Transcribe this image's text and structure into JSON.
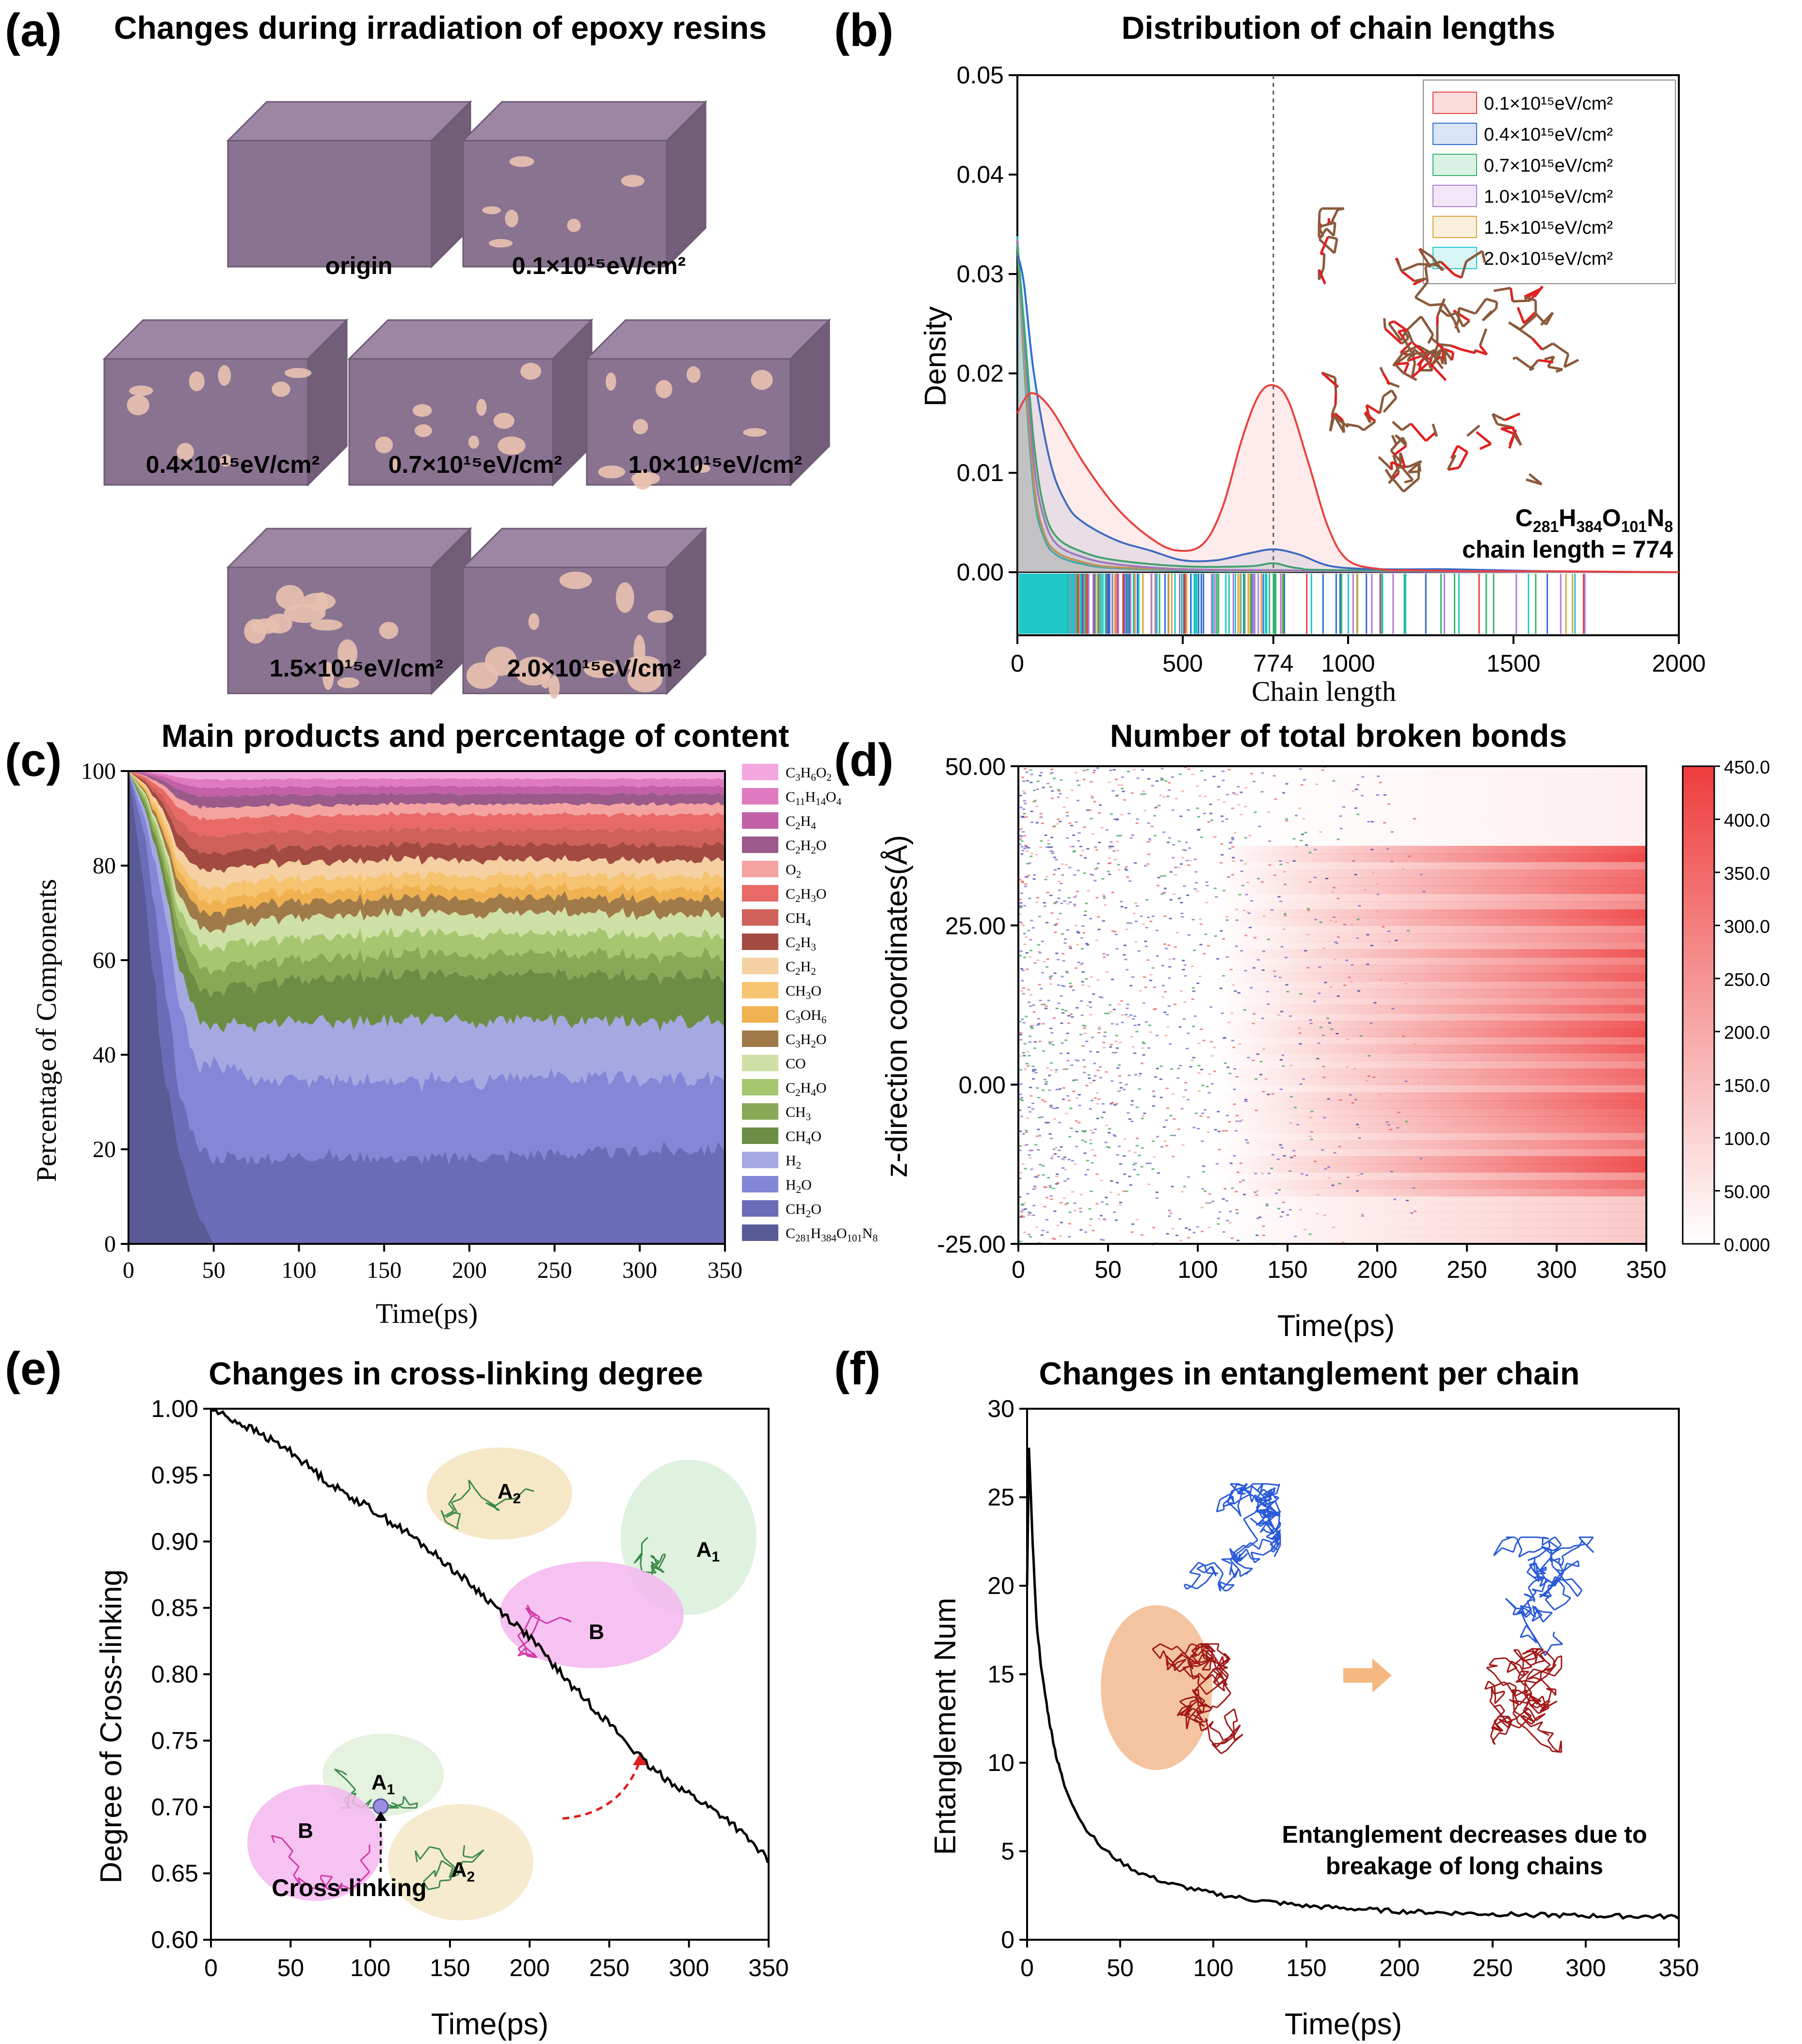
{
  "panels": {
    "a": {
      "label": "(a)",
      "title": "Changes during irradiation of epoxy resins",
      "cubes": [
        {
          "label": "origin",
          "pores": 0
        },
        {
          "label": "0.1×10¹⁵eV/cm²",
          "pores": 6
        },
        {
          "label": "0.4×10¹⁵eV/cm²",
          "pores": 8
        },
        {
          "label": "0.7×10¹⁵eV/cm²",
          "pores": 9
        },
        {
          "label": "1.0×10¹⁵eV/cm²",
          "pores": 10
        },
        {
          "label": "1.5×10¹⁵eV/cm²",
          "pores": 12
        },
        {
          "label": "2.0×10¹⁵eV/cm²",
          "pores": 13
        }
      ],
      "colors": {
        "cube": "#8a7391",
        "pore": "#e8c2b0"
      }
    },
    "b": {
      "label": "(b)"
    },
    "c": {
      "label": "(c)"
    },
    "d": {
      "label": "(d)"
    },
    "e": {
      "label": "(e)"
    },
    "f": {
      "label": "(f)"
    }
  },
  "chart_data": [
    {
      "id": "b",
      "type": "line",
      "title": "Distribution of chain lengths",
      "xlabel": "Chain length",
      "ylabel": "Density",
      "xlim": [
        0,
        2000
      ],
      "ylim": [
        0,
        0.05
      ],
      "xticks": [
        "0",
        "500",
        "774",
        "1000",
        "1500",
        "2000"
      ],
      "xtick_values": [
        0,
        500,
        774,
        1000,
        1500,
        2000
      ],
      "yticks": [
        "0.00",
        "0.01",
        "0.02",
        "0.03",
        "0.04",
        "0.05"
      ],
      "marker_line_x": 774,
      "legend": [
        {
          "label": "0.1×10¹⁵eV/cm²",
          "color": "#e8413f"
        },
        {
          "label": "0.4×10¹⁵eV/cm²",
          "color": "#2d6fd0"
        },
        {
          "label": "0.7×10¹⁵eV/cm²",
          "color": "#34b36d"
        },
        {
          "label": "1.0×10¹⁵eV/cm²",
          "color": "#b179d8"
        },
        {
          "label": "1.5×10¹⁵eV/cm²",
          "color": "#e0a43a"
        },
        {
          "label": "2.0×10¹⁵eV/cm²",
          "color": "#1fc7c7"
        }
      ],
      "series": [
        {
          "name": "0.1×10¹⁵eV/cm²",
          "color": "#e8413f",
          "x": [
            0,
            40,
            100,
            200,
            300,
            400,
            480,
            560,
            620,
            680,
            730,
            774,
            820,
            880,
            940,
            1000,
            1100,
            1200,
            1400,
            1600,
            2000
          ],
          "y": [
            0.016,
            0.018,
            0.0165,
            0.011,
            0.0065,
            0.0035,
            0.0022,
            0.0028,
            0.0065,
            0.0135,
            0.0178,
            0.0188,
            0.0172,
            0.011,
            0.0045,
            0.0012,
            0.0003,
            0.0002,
            0.0001,
            0.0001,
            0
          ]
        },
        {
          "name": "0.4×10¹⁵eV/cm²",
          "color": "#2d6fd0",
          "x": [
            0,
            20,
            50,
            100,
            150,
            200,
            300,
            400,
            500,
            600,
            700,
            774,
            850,
            950,
            1100,
            1300,
            1600,
            2000
          ],
          "y": [
            0.032,
            0.029,
            0.02,
            0.011,
            0.0068,
            0.005,
            0.0032,
            0.0022,
            0.0012,
            0.0012,
            0.0019,
            0.0023,
            0.0018,
            0.0006,
            0.0003,
            0.0003,
            0.0001,
            0
          ]
        },
        {
          "name": "0.7×10¹⁵eV/cm²",
          "color": "#34b36d",
          "x": [
            0,
            20,
            50,
            80,
            120,
            200,
            300,
            500,
            700,
            774,
            850,
            1000,
            2000
          ],
          "y": [
            0.033,
            0.025,
            0.013,
            0.0065,
            0.0035,
            0.002,
            0.0012,
            0.0006,
            0.0006,
            0.0009,
            0.0004,
            0.0002,
            0
          ]
        },
        {
          "name": "1.0×10¹⁵eV/cm²",
          "color": "#b179d8",
          "x": [
            0,
            20,
            50,
            80,
            120,
            200,
            300,
            500,
            800,
            1000,
            2000
          ],
          "y": [
            0.0335,
            0.024,
            0.011,
            0.0055,
            0.0028,
            0.0015,
            0.0008,
            0.0003,
            0.0002,
            0.0001,
            0
          ]
        },
        {
          "name": "1.5×10¹⁵eV/cm²",
          "color": "#e0a43a",
          "x": [
            0,
            20,
            50,
            80,
            120,
            200,
            300,
            600,
            1000,
            2000
          ],
          "y": [
            0.033,
            0.022,
            0.009,
            0.004,
            0.002,
            0.001,
            0.0005,
            0.0002,
            0.0001,
            0
          ]
        },
        {
          "name": "2.0×10¹⁵eV/cm²",
          "color": "#1fc7c7",
          "x": [
            0,
            20,
            50,
            80,
            120,
            200,
            300,
            600,
            1000,
            2000
          ],
          "y": [
            0.0338,
            0.021,
            0.008,
            0.0035,
            0.0017,
            0.0008,
            0.0004,
            0.0001,
            0.0001,
            0
          ]
        }
      ],
      "annotation": {
        "formula": "C281H384O101N8",
        "chain_length": "chain length = 774"
      }
    },
    {
      "id": "c",
      "type": "area",
      "title": "Main products and percentage of content",
      "xlabel": "Time(ps)",
      "ylabel": "Percentage of Components",
      "xlim": [
        0,
        350
      ],
      "ylim": [
        0,
        100
      ],
      "xticks": [
        "0",
        "50",
        "100",
        "150",
        "200",
        "250",
        "300",
        "350"
      ],
      "yticks": [
        "0",
        "20",
        "40",
        "60",
        "80",
        "100"
      ],
      "x": [
        0,
        10,
        20,
        30,
        40,
        50,
        60,
        80,
        100,
        150,
        200,
        250,
        300,
        350
      ],
      "series": [
        {
          "name": "C281H384O101N8",
          "color": "#5a5b96",
          "values": [
            100,
            75,
            40,
            18,
            6,
            0,
            0,
            0,
            0,
            0,
            0,
            0,
            0,
            0
          ]
        },
        {
          "name": "CH2O",
          "color": "#6a6cb8",
          "values": [
            0,
            12,
            20,
            12,
            12,
            15,
            16,
            16,
            17,
            17,
            17,
            18,
            18,
            19
          ]
        },
        {
          "name": "H2O",
          "color": "#8486d8",
          "values": [
            0,
            4,
            15,
            18,
            14,
            18,
            16,
            15,
            15,
            15,
            15,
            15,
            14,
            14
          ]
        },
        {
          "name": "H2",
          "color": "#a6a8e2",
          "values": [
            0,
            2,
            5,
            7,
            9,
            6,
            8,
            11,
            11,
            12,
            12,
            11,
            11,
            11
          ]
        },
        {
          "name": "CH4O",
          "color": "#6c8e44",
          "values": [
            0,
            1.2,
            3,
            5,
            6,
            6,
            7,
            8,
            8,
            9,
            9,
            9,
            9,
            9
          ]
        },
        {
          "name": "CH3",
          "color": "#8aa957",
          "values": [
            0,
            1,
            2,
            4,
            4,
            4,
            4,
            4,
            4,
            4,
            4,
            4,
            4,
            4
          ]
        },
        {
          "name": "C2H4O",
          "color": "#a6c76f",
          "values": [
            0,
            0.8,
            2,
            3,
            4,
            4,
            4,
            4,
            4,
            4,
            4,
            4,
            4,
            4
          ]
        },
        {
          "name": "CO",
          "color": "#cfe0a6",
          "values": [
            0,
            0.6,
            1.5,
            3,
            3,
            3,
            3,
            4,
            4,
            4,
            4,
            4,
            4,
            4
          ]
        },
        {
          "name": "C3H2O",
          "color": "#a07a48",
          "values": [
            0,
            0.5,
            1.5,
            3,
            3,
            3,
            3,
            3,
            3,
            3,
            3,
            3,
            3,
            3
          ]
        },
        {
          "name": "C3OH6",
          "color": "#f0b150",
          "values": [
            0,
            0.5,
            1.5,
            2,
            2,
            2,
            2,
            2,
            2,
            2,
            2,
            2,
            2,
            2
          ]
        },
        {
          "name": "CH3O",
          "color": "#f6c470",
          "values": [
            0,
            0.5,
            1.5,
            2,
            2.5,
            2.5,
            2.5,
            2.5,
            2.5,
            2.5,
            2.5,
            2.5,
            2.5,
            2.5
          ]
        },
        {
          "name": "C2H2",
          "color": "#f5d0a2",
          "values": [
            0,
            0.5,
            1.5,
            2.5,
            3,
            3,
            3,
            3,
            3,
            3,
            3,
            3,
            3,
            3
          ]
        },
        {
          "name": "C2H3",
          "color": "#a34a42",
          "values": [
            0,
            0.6,
            1.5,
            3,
            3,
            3,
            3,
            3,
            3,
            3,
            3,
            3,
            3,
            3
          ]
        },
        {
          "name": "CH4",
          "color": "#cf615a",
          "values": [
            0,
            0.5,
            1.5,
            3,
            3,
            3,
            3,
            3,
            3,
            3,
            3,
            3,
            3,
            3
          ]
        },
        {
          "name": "C2H3O",
          "color": "#e86a66",
          "values": [
            0,
            0.5,
            1.5,
            2.5,
            3,
            3,
            3,
            3,
            3,
            3,
            3,
            3,
            3,
            3
          ]
        },
        {
          "name": "O2",
          "color": "#f4a3a0",
          "values": [
            0,
            0.3,
            1,
            2,
            2,
            2,
            2,
            2,
            2,
            2,
            2,
            2,
            2,
            2
          ]
        },
        {
          "name": "C2H2O",
          "color": "#9c5a8a",
          "values": [
            0,
            0.3,
            1,
            2,
            2,
            2,
            2,
            2,
            2,
            2,
            2,
            2,
            2,
            2
          ]
        },
        {
          "name": "C2H4",
          "color": "#c260a8",
          "values": [
            0,
            0.3,
            0.8,
            1.5,
            1.5,
            1.5,
            1.5,
            1.5,
            1.5,
            1.5,
            1.5,
            1.5,
            1.5,
            1.5
          ]
        },
        {
          "name": "C11H14O4",
          "color": "#e07ac0",
          "values": [
            0,
            0.2,
            0.6,
            1.2,
            1.5,
            1.5,
            1.5,
            1.5,
            1.5,
            1.5,
            1.5,
            1.5,
            1.5,
            1.5
          ]
        },
        {
          "name": "C3H6O2",
          "color": "#f2a8de",
          "values": [
            0,
            0.2,
            0.6,
            1.3,
            1.5,
            1.5,
            1.5,
            1.5,
            1.5,
            1.5,
            1.5,
            1.5,
            1.5,
            1.5
          ]
        }
      ],
      "legend_sub": [
        [
          "C",
          "3",
          "H",
          "6",
          "O",
          "2"
        ],
        [
          "C",
          "11",
          "H",
          "14",
          "O",
          "4"
        ],
        [
          "C",
          "2",
          "H",
          "4"
        ],
        [
          "C",
          "2",
          "H",
          "2",
          "O"
        ],
        [
          "O",
          "2"
        ],
        [
          "C",
          "2",
          "H",
          "3",
          "O"
        ],
        [
          "CH",
          "4"
        ],
        [
          "C",
          "2",
          "H",
          "3"
        ],
        [
          "C",
          "2",
          "H",
          "2"
        ],
        [
          "CH",
          "3",
          "O"
        ],
        [
          "C",
          "3",
          "OH",
          "6"
        ],
        [
          "C",
          "3",
          "H",
          "2",
          "O"
        ],
        [
          "CO"
        ],
        [
          "C",
          "2",
          "H",
          "4",
          "O"
        ],
        [
          "CH",
          "3"
        ],
        [
          "CH",
          "4",
          "O"
        ],
        [
          "H",
          "2"
        ],
        [
          "H",
          "2",
          "O"
        ],
        [
          "CH",
          "2",
          "O"
        ],
        [
          "C",
          "281",
          "H",
          "384",
          "O",
          "101",
          "N",
          "8"
        ]
      ]
    },
    {
      "id": "d",
      "type": "heatmap",
      "title": "Number of total broken bonds",
      "xlabel": "Time(ps)",
      "ylabel": "z-direction coordinates(Å)",
      "xlim": [
        0,
        350
      ],
      "ylim": [
        -25,
        50
      ],
      "xticks": [
        "0",
        "50",
        "100",
        "150",
        "200",
        "250",
        "300",
        "350"
      ],
      "yticks": [
        "-25.00",
        "0.00",
        "25.00",
        "50.00"
      ],
      "colorbar_ticks": [
        "0.000",
        "50.00",
        "100.0",
        "150.0",
        "200.0",
        "250.0",
        "300.0",
        "350.0",
        "400.0",
        "450.0"
      ],
      "colorbar_range": [
        0,
        450
      ],
      "colors": {
        "low": "#ffffff",
        "high": "#ee3d3d"
      }
    },
    {
      "id": "e",
      "type": "line",
      "title": "Changes in cross-linking degree",
      "xlabel": "Time(ps)",
      "ylabel": "Degree of Cross-linking",
      "xlim": [
        0,
        350
      ],
      "ylim": [
        0.6,
        1.0
      ],
      "xticks": [
        "0",
        "50",
        "100",
        "150",
        "200",
        "250",
        "300",
        "350"
      ],
      "yticks": [
        "0.60",
        "0.65",
        "0.70",
        "0.75",
        "0.80",
        "0.85",
        "0.90",
        "0.95",
        "1.00"
      ],
      "series": [
        {
          "name": "Degree of Cross-linking",
          "color": "#000000",
          "x": [
            0,
            25,
            50,
            75,
            100,
            125,
            150,
            175,
            200,
            225,
            250,
            275,
            300,
            325,
            350
          ],
          "y": [
            1.0,
            0.985,
            0.968,
            0.943,
            0.925,
            0.905,
            0.881,
            0.855,
            0.828,
            0.793,
            0.763,
            0.73,
            0.71,
            0.69,
            0.66
          ]
        }
      ],
      "annotations": {
        "a1": "A",
        "a2": "A",
        "b": "B",
        "sub1": "1",
        "sub2": "2",
        "crosslink": "Cross-linking"
      }
    },
    {
      "id": "f",
      "type": "line",
      "title": "Changes in entanglement per chain",
      "xlabel": "Time(ps)",
      "ylabel": "Entanglement Num",
      "xlim": [
        0,
        350
      ],
      "ylim": [
        0,
        30
      ],
      "xticks": [
        "0",
        "50",
        "100",
        "150",
        "200",
        "250",
        "300",
        "350"
      ],
      "yticks": [
        "0",
        "5",
        "10",
        "15",
        "20",
        "25",
        "30"
      ],
      "series": [
        {
          "name": "Entanglement Num",
          "color": "#000000",
          "x": [
            0,
            1,
            3,
            5,
            8,
            12,
            16,
            20,
            25,
            30,
            40,
            50,
            60,
            75,
            100,
            125,
            150,
            200,
            250,
            300,
            350
          ],
          "y": [
            20,
            27.8,
            22.5,
            18,
            15,
            12.3,
            10.2,
            8.8,
            7.5,
            6.5,
            5.2,
            4.4,
            3.8,
            3.2,
            2.6,
            2.2,
            1.9,
            1.6,
            1.45,
            1.35,
            1.3
          ]
        }
      ],
      "annotation": {
        "line1": "Entanglement decreases due to",
        "line2": "breakage of long chains"
      }
    }
  ]
}
